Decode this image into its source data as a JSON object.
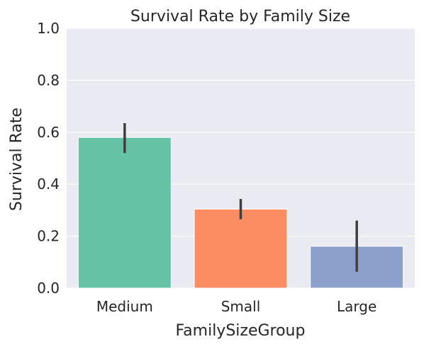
{
  "chart_data": {
    "type": "bar",
    "title": "Survival Rate by Family Size",
    "xlabel": "FamilySizeGroup",
    "ylabel": "Survival Rate",
    "categories": [
      "Medium",
      "Small",
      "Large"
    ],
    "values": [
      0.58,
      0.304,
      0.161
    ],
    "error_bars": [
      [
        0.52,
        0.635
      ],
      [
        0.265,
        0.343
      ],
      [
        0.063,
        0.26
      ]
    ],
    "ylim": [
      0,
      1.0
    ],
    "yticks": [
      0.0,
      0.2,
      0.4,
      0.6,
      0.8,
      1.0
    ],
    "ytick_labels": [
      "0.0",
      "0.2",
      "0.4",
      "0.6",
      "0.8",
      "1.0"
    ],
    "grid": true,
    "colors": [
      "#66c2a5",
      "#fc8d62",
      "#8da0cb"
    ],
    "error_color": "#3f3f3f",
    "background": "#eaeaf2"
  }
}
